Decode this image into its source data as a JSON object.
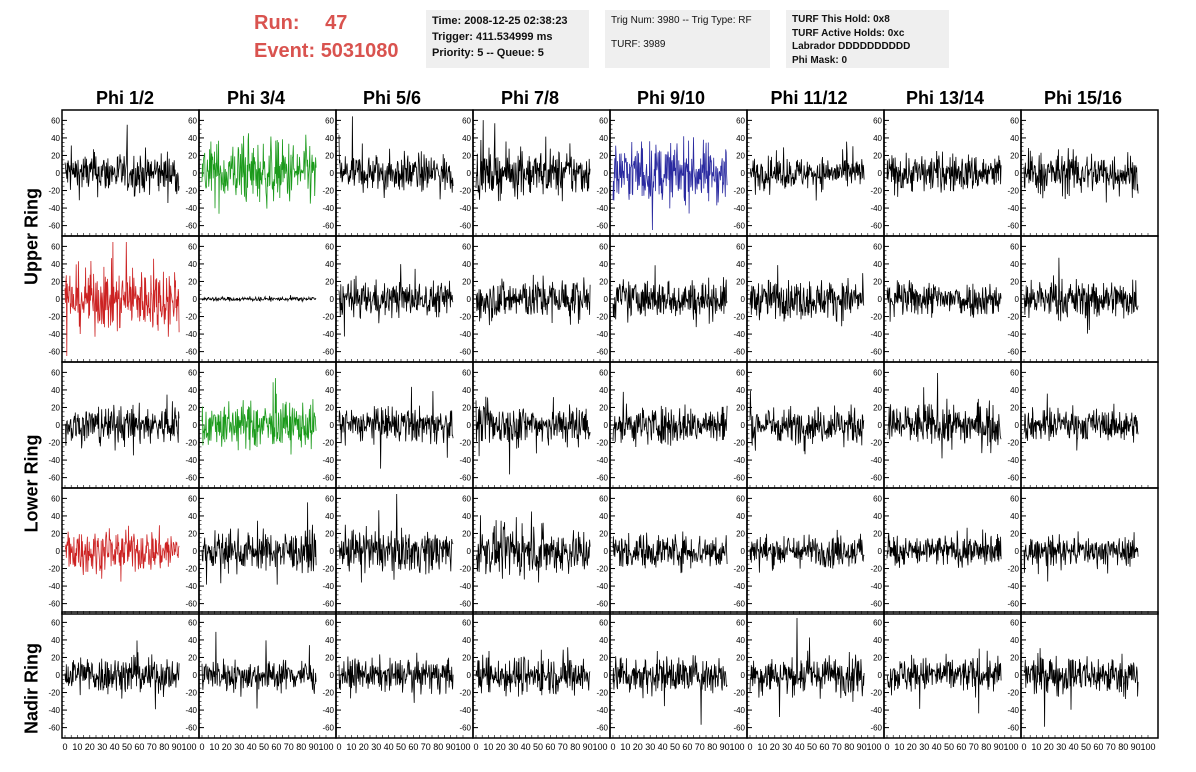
{
  "header": {
    "run_label": "Run:",
    "run_value": "47",
    "event_label": "Event:",
    "event_value": "5031080",
    "box1": [
      "Time: 2008-12-25 02:38:23",
      "Trigger: 411.534999 ms",
      "Priority: 5 -- Queue: 5"
    ],
    "box2": [
      "Trig Num: 3980 -- Trig Type: RF",
      "TURF: 3989"
    ],
    "box3": [
      "TURF This Hold: 0x8",
      "TURF Active Holds: 0xc",
      "Labrador DDDDDDDDDD",
      "Phi Mask: 0"
    ]
  },
  "phi_labels": [
    "Phi 1/2",
    "Phi 3/4",
    "Phi 5/6",
    "Phi 7/8",
    "Phi 9/10",
    "Phi 11/12",
    "Phi 13/14",
    "Phi 15/16"
  ],
  "ring_labels": {
    "upper": "Upper Ring",
    "lower": "Lower Ring",
    "nadir": "Nadir Ring"
  },
  "colors": {
    "default_trace": "#000000",
    "green_trace": "#1a9a1a",
    "blue_trace": "#2a2aa0",
    "red_trace": "#cc2222",
    "run_text": "#d9534f",
    "info_bg": "#efefef"
  },
  "chart_data": {
    "type": "line",
    "description_rows": 5,
    "description_cols": 8,
    "x_range": [
      0,
      100
    ],
    "y_range": [
      -65,
      65
    ],
    "y_ticks": [
      -60,
      -40,
      -20,
      0,
      20,
      40,
      60
    ],
    "x_ticks": [
      0,
      10,
      20,
      30,
      40,
      50,
      60,
      70,
      80,
      90,
      100
    ],
    "samples": 256,
    "panels": [
      [
        {
          "color": "default",
          "amp": 12
        },
        {
          "color": "green",
          "amp": 18
        },
        {
          "color": "default",
          "amp": 11
        },
        {
          "color": "default",
          "amp": 13
        },
        {
          "color": "blue",
          "amp": 17
        },
        {
          "color": "default",
          "amp": 9
        },
        {
          "color": "default",
          "amp": 11
        },
        {
          "color": "default",
          "amp": 12
        }
      ],
      [
        {
          "color": "red",
          "amp": 18
        },
        {
          "color": "default",
          "amp": 1.2
        },
        {
          "color": "default",
          "amp": 10
        },
        {
          "color": "default",
          "amp": 12
        },
        {
          "color": "default",
          "amp": 11
        },
        {
          "color": "default",
          "amp": 11
        },
        {
          "color": "default",
          "amp": 10
        },
        {
          "color": "default",
          "amp": 11
        }
      ],
      [
        {
          "color": "default",
          "amp": 11
        },
        {
          "color": "green",
          "amp": 13
        },
        {
          "color": "default",
          "amp": 10
        },
        {
          "color": "default",
          "amp": 12
        },
        {
          "color": "default",
          "amp": 11
        },
        {
          "color": "default",
          "amp": 10
        },
        {
          "color": "default",
          "amp": 12
        },
        {
          "color": "default",
          "amp": 9
        }
      ],
      [
        {
          "color": "red",
          "amp": 12
        },
        {
          "color": "default",
          "amp": 11
        },
        {
          "color": "default",
          "amp": 12
        },
        {
          "color": "default",
          "amp": 13
        },
        {
          "color": "default",
          "amp": 10
        },
        {
          "color": "default",
          "amp": 9
        },
        {
          "color": "default",
          "amp": 9
        },
        {
          "color": "default",
          "amp": 8
        }
      ],
      [
        {
          "color": "default",
          "amp": 11
        },
        {
          "color": "default",
          "amp": 9
        },
        {
          "color": "default",
          "amp": 9
        },
        {
          "color": "default",
          "amp": 11
        },
        {
          "color": "default",
          "amp": 11
        },
        {
          "color": "default",
          "amp": 11
        },
        {
          "color": "default",
          "amp": 10
        },
        {
          "color": "default",
          "amp": 11
        }
      ]
    ]
  }
}
